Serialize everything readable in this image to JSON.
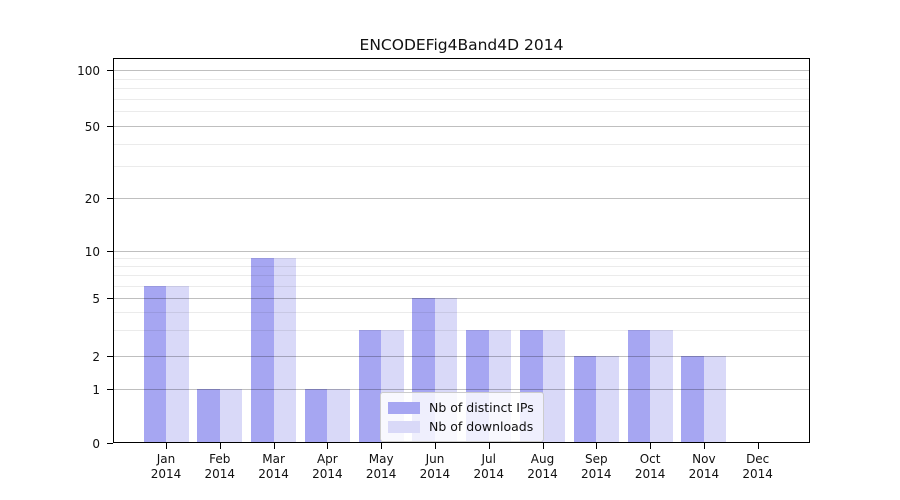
{
  "chart_data": {
    "type": "bar",
    "title": "ENCODEFig4Band4D 2014",
    "categories": [
      "Jan",
      "Feb",
      "Mar",
      "Apr",
      "May",
      "Jun",
      "Jul",
      "Aug",
      "Sep",
      "Oct",
      "Nov",
      "Dec"
    ],
    "category_year": "2014",
    "series": [
      {
        "name": "Nb of distinct IPs",
        "color": "#a6a6f2",
        "values": [
          6,
          1,
          9,
          1,
          3,
          5,
          3,
          3,
          2,
          3,
          2,
          0
        ]
      },
      {
        "name": "Nb of downloads",
        "color": "#d9d9f8",
        "values": [
          6,
          1,
          9,
          1,
          3,
          5,
          3,
          3,
          2,
          3,
          2,
          0
        ]
      }
    ],
    "yticks": [
      0,
      1,
      2,
      5,
      10,
      20,
      50,
      100
    ],
    "yticks_minor": [
      3,
      4,
      6,
      7,
      8,
      9,
      30,
      40,
      60,
      70,
      80,
      90
    ],
    "ylim": [
      0,
      100
    ],
    "yscale": "log-with-zero",
    "xlabel": "",
    "ylabel": "",
    "grid": true,
    "legend_position": "lower-center-inside"
  }
}
